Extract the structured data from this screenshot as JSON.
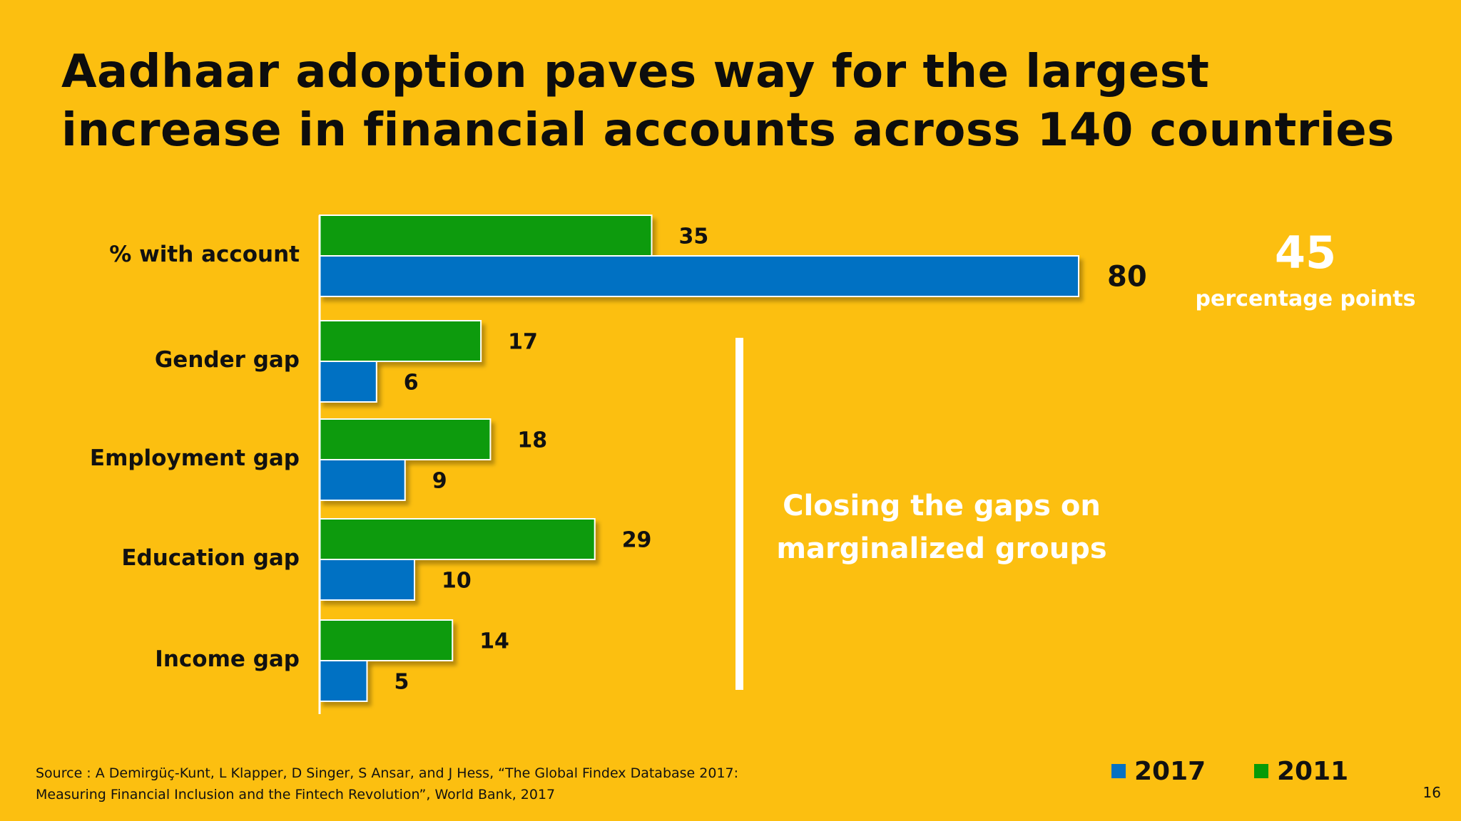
{
  "slide": {
    "title_line1": "Aadhaar adoption paves way for the largest",
    "title_line2": "increase in financial accounts across 140 countries",
    "highlight_value": "45",
    "highlight_label": "percentage points",
    "callout_line1": "Closing the gaps on",
    "callout_line2": "marginalized groups",
    "source_line1": "Source : A Demirgüç-Kunt, L Klapper, D Singer, S Ansar, and J Hess, “The Global Findex Database 2017:",
    "source_line2": "Measuring Financial Inclusion and the Fintech Revolution”, World Bank, 2017",
    "page_number": "16"
  },
  "colors": {
    "background": "#fcbf10",
    "series_2011": "#079b07",
    "series_2017": "#0571c3",
    "accent_white": "#ffffff"
  },
  "chart_data": {
    "type": "bar",
    "orientation": "horizontal",
    "categories": [
      "% with account",
      "Gender gap",
      "Employment gap",
      "Education gap",
      "Income gap"
    ],
    "series": [
      {
        "name": "2011",
        "values": [
          35,
          17,
          18,
          29,
          14
        ]
      },
      {
        "name": "2017",
        "values": [
          80,
          6,
          9,
          10,
          5
        ]
      }
    ],
    "xlim": [
      0,
      80
    ],
    "data_labels": true,
    "grid": false,
    "legend_position": "bottom-right"
  }
}
